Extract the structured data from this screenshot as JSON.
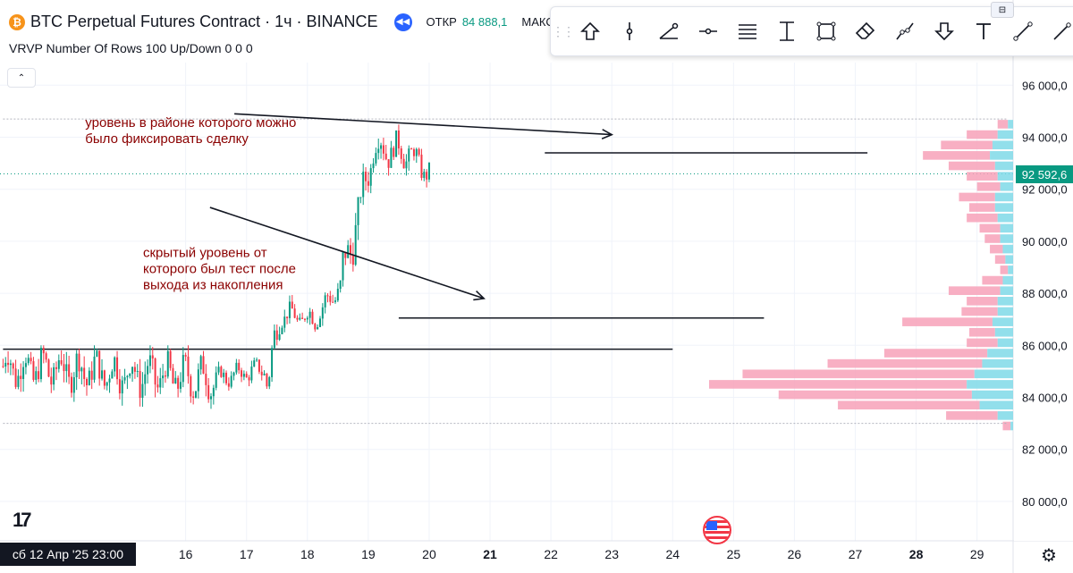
{
  "header": {
    "symbol_badge": "₿",
    "title": "BTC Perpetual Futures Contract · 1ч · BINANCE",
    "ohlc_label": "ОТКР",
    "ohlc_value": "84 888,1",
    "ohlc_next": "МАКС",
    "indicator": "VRVP Number Of Rows 100 Up/Down  0  0  0"
  },
  "toolbar": {
    "tools": [
      "arrow-up-icon",
      "cursor-line-icon",
      "trend-angle-icon",
      "horizontal-ray-icon",
      "parallel-lines-icon",
      "vertical-measure-icon",
      "rectangle-icon",
      "eraser-icon",
      "path-icon",
      "arrow-down-icon",
      "text-icon",
      "line-icon",
      "brush-icon"
    ],
    "corner_button": "⊟"
  },
  "price_label": "92 592,6",
  "date_label": "сб 12 Апр '25   23:00",
  "logo": "17",
  "annotations": [
    {
      "text": "уровень в районе которого можно\nбыло фиксировать сделку",
      "color": "#8b0000"
    },
    {
      "text": "скрытый уровень от\nкоторого был тест после\nвыхода из накопления",
      "color": "#8b0000"
    }
  ],
  "chart_data": {
    "type": "candlestick",
    "title": "BTC Perpetual Futures Contract · 1ч · BINANCE",
    "x_labels": [
      "16",
      "17",
      "18",
      "19",
      "20",
      "21",
      "22",
      "23",
      "24",
      "25",
      "26",
      "27",
      "28",
      "29"
    ],
    "bold_labels": [
      "21",
      "28"
    ],
    "y_ticks": [
      80000,
      82000,
      84000,
      86000,
      88000,
      90000,
      92000,
      94000,
      96000
    ],
    "ylim": [
      79000,
      98000
    ],
    "current_price": 92592.6,
    "range_high": 94700,
    "range_low": 83000,
    "segments": [
      {
        "hours": 84,
        "start": 85200,
        "end": 84700,
        "min": 83100,
        "max": 86000
      },
      {
        "hours": 20,
        "start": 84700,
        "end": 85100,
        "min": 84200,
        "max": 85600
      },
      {
        "hours": 2,
        "start": 84300,
        "end": 84800,
        "min": 83900,
        "max": 85000
      },
      {
        "hours": 4,
        "start": 84800,
        "end": 87200,
        "min": 84600,
        "max": 87300
      },
      {
        "hours": 14,
        "start": 87200,
        "end": 87000,
        "min": 86500,
        "max": 88100
      },
      {
        "hours": 10,
        "start": 87000,
        "end": 88300,
        "min": 86700,
        "max": 88500
      },
      {
        "hours": 8,
        "start": 88300,
        "end": 91500,
        "min": 88200,
        "max": 91700
      },
      {
        "hours": 5,
        "start": 91500,
        "end": 93600,
        "min": 91400,
        "max": 94000
      },
      {
        "hours": 14,
        "start": 93600,
        "end": 93400,
        "min": 92400,
        "max": 94700
      },
      {
        "hours": 8,
        "start": 93400,
        "end": 92600,
        "min": 91700,
        "max": 93600
      }
    ],
    "horizontal_lines": [
      {
        "price": 93400,
        "from_day": 21.9,
        "to_day": 27.2,
        "color": "#131722"
      },
      {
        "price": 87050,
        "from_day": 19.5,
        "to_day": 25.5,
        "color": "#131722"
      },
      {
        "price": 85850,
        "from_day": 13.0,
        "to_day": 24.0,
        "color": "#131722"
      },
      {
        "price": 94700,
        "from_day": 13.0,
        "to_day": 29.5,
        "color": "#b2b5be",
        "dashed": true
      },
      {
        "price": 83000,
        "from_day": 13.0,
        "to_day": 29.5,
        "color": "#b2b5be",
        "dashed": true
      }
    ],
    "arrows": [
      {
        "from": [
          16.8,
          94900
        ],
        "to": [
          23.0,
          94100
        ]
      },
      {
        "from": [
          16.4,
          91300
        ],
        "to": [
          20.9,
          87800
        ]
      }
    ],
    "volume_profile": [
      {
        "price": 82900,
        "up": 1,
        "down": 3
      },
      {
        "price": 83300,
        "up": 6,
        "down": 20
      },
      {
        "price": 83700,
        "up": 13,
        "down": 55
      },
      {
        "price": 84100,
        "up": 16,
        "down": 75
      },
      {
        "price": 84500,
        "up": 18,
        "down": 100
      },
      {
        "price": 84900,
        "up": 15,
        "down": 90
      },
      {
        "price": 85300,
        "up": 12,
        "down": 60
      },
      {
        "price": 85700,
        "up": 10,
        "down": 40
      },
      {
        "price": 86100,
        "up": 6,
        "down": 12
      },
      {
        "price": 86500,
        "up": 7,
        "down": 10
      },
      {
        "price": 86900,
        "up": 8,
        "down": 35
      },
      {
        "price": 87300,
        "up": 6,
        "down": 14
      },
      {
        "price": 87700,
        "up": 6,
        "down": 12
      },
      {
        "price": 88100,
        "up": 5,
        "down": 20
      },
      {
        "price": 88500,
        "up": 4,
        "down": 8
      },
      {
        "price": 88900,
        "up": 2,
        "down": 3
      },
      {
        "price": 89300,
        "up": 3,
        "down": 4
      },
      {
        "price": 89700,
        "up": 4,
        "down": 5
      },
      {
        "price": 90100,
        "up": 5,
        "down": 6
      },
      {
        "price": 90500,
        "up": 5,
        "down": 8
      },
      {
        "price": 90900,
        "up": 6,
        "down": 12
      },
      {
        "price": 91300,
        "up": 7,
        "down": 10
      },
      {
        "price": 91700,
        "up": 7,
        "down": 14
      },
      {
        "price": 92100,
        "up": 5,
        "down": 9
      },
      {
        "price": 92500,
        "up": 6,
        "down": 12
      },
      {
        "price": 92900,
        "up": 7,
        "down": 18
      },
      {
        "price": 93300,
        "up": 9,
        "down": 26
      },
      {
        "price": 93700,
        "up": 8,
        "down": 20
      },
      {
        "price": 94100,
        "up": 6,
        "down": 12
      },
      {
        "price": 94500,
        "up": 2,
        "down": 4
      }
    ]
  }
}
